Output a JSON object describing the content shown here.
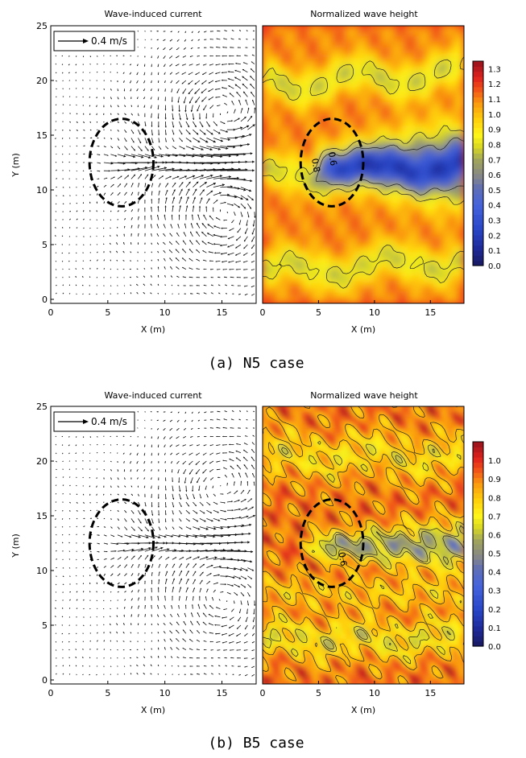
{
  "figure": {
    "panels": [
      {
        "id": "n5",
        "caption": "(a) N5 case",
        "current": {
          "type": "quiver",
          "title": "Wave-induced current",
          "xlabel": "X (m)",
          "ylabel": "Y (m)",
          "xlim": [
            0,
            18
          ],
          "ylim": [
            0,
            25
          ],
          "xticks": [
            "0",
            "5",
            "10",
            "15"
          ],
          "yticks": [
            "0",
            "5",
            "10",
            "15",
            "20",
            "25"
          ],
          "reference_arrow_label": "0.4 m/s",
          "reference_arrow_speed": 0.4,
          "structure_ellipse": {
            "cx": 6.2,
            "cy": 12.5,
            "rx": 2.8,
            "ry": 4.0
          },
          "jet": {
            "y": 12.4,
            "x_start": 5.5,
            "x_end": 18,
            "peak_speed": 0.35
          },
          "eddies": [
            {
              "x": 15.2,
              "y": 16.8,
              "direction": "counterclockwise",
              "speed": 0.12
            },
            {
              "x": 15.2,
              "y": 8.2,
              "direction": "clockwise",
              "speed": 0.12
            }
          ]
        },
        "wave_height": {
          "type": "heatmap",
          "title": "Normalized wave height",
          "xlabel": "X (m)",
          "xlim": [
            0,
            18
          ],
          "ylim": [
            0,
            25
          ],
          "xticks": [
            "0",
            "5",
            "10",
            "15"
          ],
          "colorbar_ticks": [
            "0.0",
            "0.1",
            "0.2",
            "0.3",
            "0.4",
            "0.5",
            "0.6",
            "0.7",
            "0.8",
            "0.9",
            "1.0",
            "1.1",
            "1.2",
            "1.3"
          ],
          "colorbar_range": [
            0,
            1.35
          ],
          "contour_labels": [
            {
              "text": "0.8",
              "x": 4.5,
              "y": 12.2
            },
            {
              "text": "0.6",
              "x": 6.0,
              "y": 12.8
            }
          ],
          "structure_ellipse": {
            "cx": 6.2,
            "cy": 12.5,
            "rx": 2.8,
            "ry": 4.0
          }
        }
      },
      {
        "id": "b5",
        "caption": "(b) B5 case",
        "current": {
          "type": "quiver",
          "title": "Wave-induced current",
          "xlabel": "X (m)",
          "ylabel": "Y (m)",
          "xlim": [
            0,
            18
          ],
          "ylim": [
            0,
            25
          ],
          "xticks": [
            "0",
            "5",
            "10",
            "15"
          ],
          "yticks": [
            "0",
            "5",
            "10",
            "15",
            "20",
            "25"
          ],
          "reference_arrow_label": "0.4 m/s",
          "reference_arrow_speed": 0.4,
          "structure_ellipse": {
            "cx": 6.2,
            "cy": 12.5,
            "rx": 2.8,
            "ry": 4.0
          },
          "jet": {
            "y": 12.4,
            "x_start": 6.0,
            "x_end": 16.5,
            "peak_speed": 0.25
          },
          "eddies": [
            {
              "x": 15.0,
              "y": 17.5,
              "direction": "counterclockwise",
              "speed": 0.09
            },
            {
              "x": 15.0,
              "y": 7.5,
              "direction": "clockwise",
              "speed": 0.09
            }
          ]
        },
        "wave_height": {
          "type": "heatmap",
          "title": "Normalized wave height",
          "xlabel": "X (m)",
          "xlim": [
            0,
            18
          ],
          "ylim": [
            0,
            25
          ],
          "xticks": [
            "0",
            "5",
            "10",
            "15"
          ],
          "colorbar_ticks": [
            "0.0",
            "0.1",
            "0.2",
            "0.3",
            "0.4",
            "0.5",
            "0.6",
            "0.7",
            "0.8",
            "0.9",
            "1.0"
          ],
          "colorbar_range": [
            0,
            1.1
          ],
          "contour_labels": [
            {
              "text": "0.6",
              "x": 6.9,
              "y": 11.0
            }
          ],
          "structure_ellipse": {
            "cx": 6.2,
            "cy": 12.5,
            "rx": 2.8,
            "ry": 4.0
          }
        }
      }
    ]
  }
}
